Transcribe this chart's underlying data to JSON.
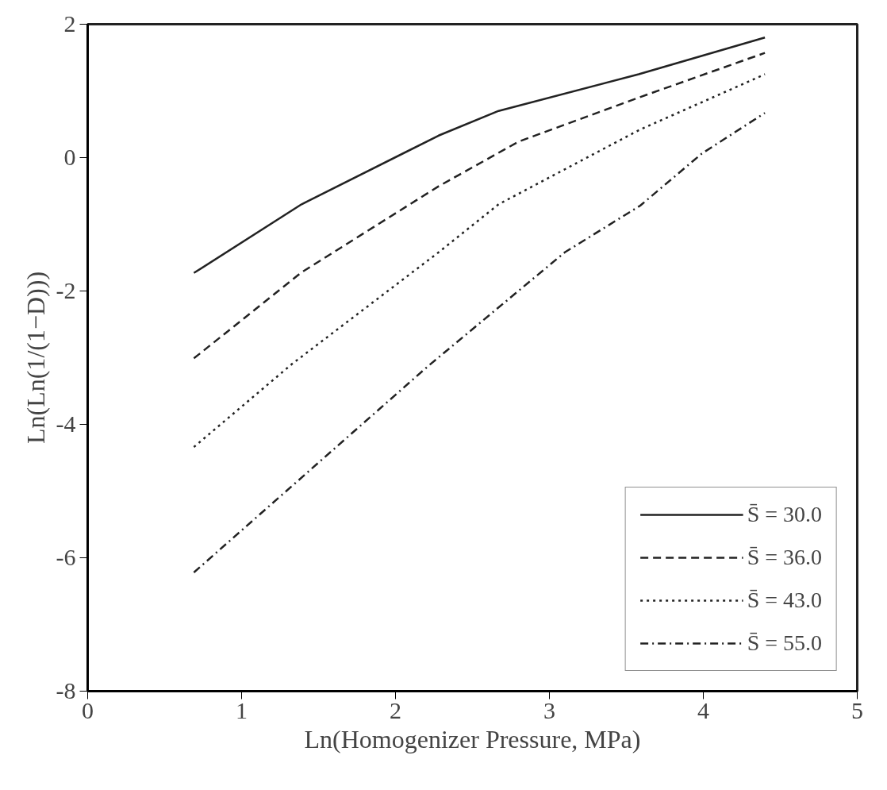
{
  "chart_data": {
    "type": "line",
    "xlabel": "Ln(Homogenizer Pressure, MPa)",
    "ylabel": "Ln(Ln(1/(1−D)))",
    "xlim": [
      0,
      5
    ],
    "xticks": [
      0,
      1,
      2,
      3,
      4,
      5
    ],
    "ylim": [
      -8,
      2
    ],
    "yticks": [
      -8,
      -6,
      -4,
      -2,
      0,
      2
    ],
    "grid": false,
    "legend": "bottom right",
    "series": [
      {
        "name": "S̄ = 30.0",
        "color": "#222222",
        "line_style": "solid",
        "x": [
          0.69,
          1.39,
          2.28,
          2.67,
          3.58,
          4.4
        ],
        "values": [
          -1.73,
          -0.7,
          0.33,
          0.7,
          1.25,
          1.8
        ]
      },
      {
        "name": "S̄ = 36.0",
        "color": "#222222",
        "line_style": "dashed",
        "x": [
          0.69,
          1.39,
          2.28,
          2.8,
          3.58,
          4.4
        ],
        "values": [
          -3.01,
          -1.72,
          -0.43,
          0.24,
          0.9,
          1.57
        ]
      },
      {
        "name": "S̄ = 43.0",
        "color": "#222222",
        "line_style": "dotted",
        "x": [
          0.69,
          1.33,
          2.28,
          2.67,
          3.58,
          4.4
        ],
        "values": [
          -4.34,
          -3.09,
          -1.42,
          -0.7,
          0.41,
          1.25
        ]
      },
      {
        "name": "S̄ = 55.0",
        "color": "#222222",
        "line_style": "dashdot",
        "x": [
          0.69,
          2.21,
          3.1,
          3.59,
          3.99,
          4.4
        ],
        "values": [
          -6.22,
          -3.13,
          -1.42,
          -0.72,
          0.06,
          0.67
        ]
      }
    ]
  }
}
